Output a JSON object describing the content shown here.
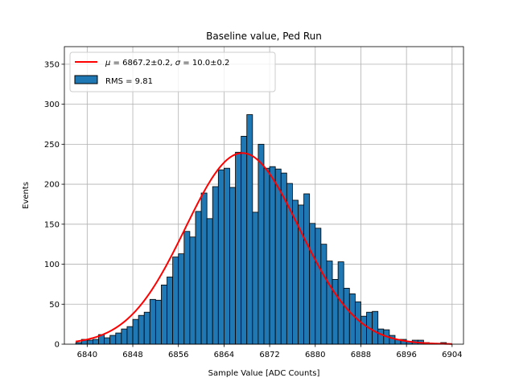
{
  "chart_data": {
    "type": "histogram",
    "title": "Baseline value, Ped Run",
    "xlabel": "Sample Value [ADC Counts]",
    "ylabel": "Events",
    "xlim": [
      6836,
      6906
    ],
    "ylim": [
      0,
      372
    ],
    "xticks": [
      6840,
      6848,
      6856,
      6864,
      6872,
      6880,
      6888,
      6896,
      6904
    ],
    "yticks": [
      0,
      50,
      100,
      150,
      200,
      250,
      300,
      350
    ],
    "grid": true,
    "legend_position": "top-left",
    "bins": {
      "start": 6838,
      "width": 1,
      "counts": [
        2,
        6,
        5,
        6,
        12,
        8,
        11,
        14,
        19,
        22,
        31,
        36,
        40,
        56,
        55,
        74,
        84,
        109,
        113,
        141,
        134,
        166,
        189,
        157,
        197,
        218,
        220,
        196,
        240,
        260,
        287,
        165,
        250,
        220,
        222,
        219,
        214,
        201,
        180,
        174,
        188,
        151,
        145,
        125,
        104,
        81,
        103,
        70,
        63,
        53,
        35,
        40,
        41,
        19,
        18,
        11,
        6,
        6,
        3,
        5,
        5,
        2,
        1,
        1,
        2,
        0
      ]
    },
    "fit": {
      "type": "gaussian",
      "mu": 6867.2,
      "sigma": 10.0,
      "amplitude": 239,
      "x_range": [
        6838,
        6904
      ]
    },
    "series": [
      {
        "name": "$\\mu = 6867.2 \\pm 0.2$, $\\sigma = 10.0 \\pm 0.2$",
        "kind": "fit-line",
        "color": "#ff0000"
      },
      {
        "name": "RMS = 9.81",
        "kind": "histogram",
        "color": "#1f77b4",
        "edge_color": "#000000"
      }
    ]
  },
  "legend": {
    "fit_mu_symbol": "μ",
    "fit_mu_text": " = 6867.2±0.2, ",
    "fit_sigma_symbol": "σ",
    "fit_sigma_text": " = 10.0±0.2",
    "hist_label": "RMS = 9.81"
  }
}
